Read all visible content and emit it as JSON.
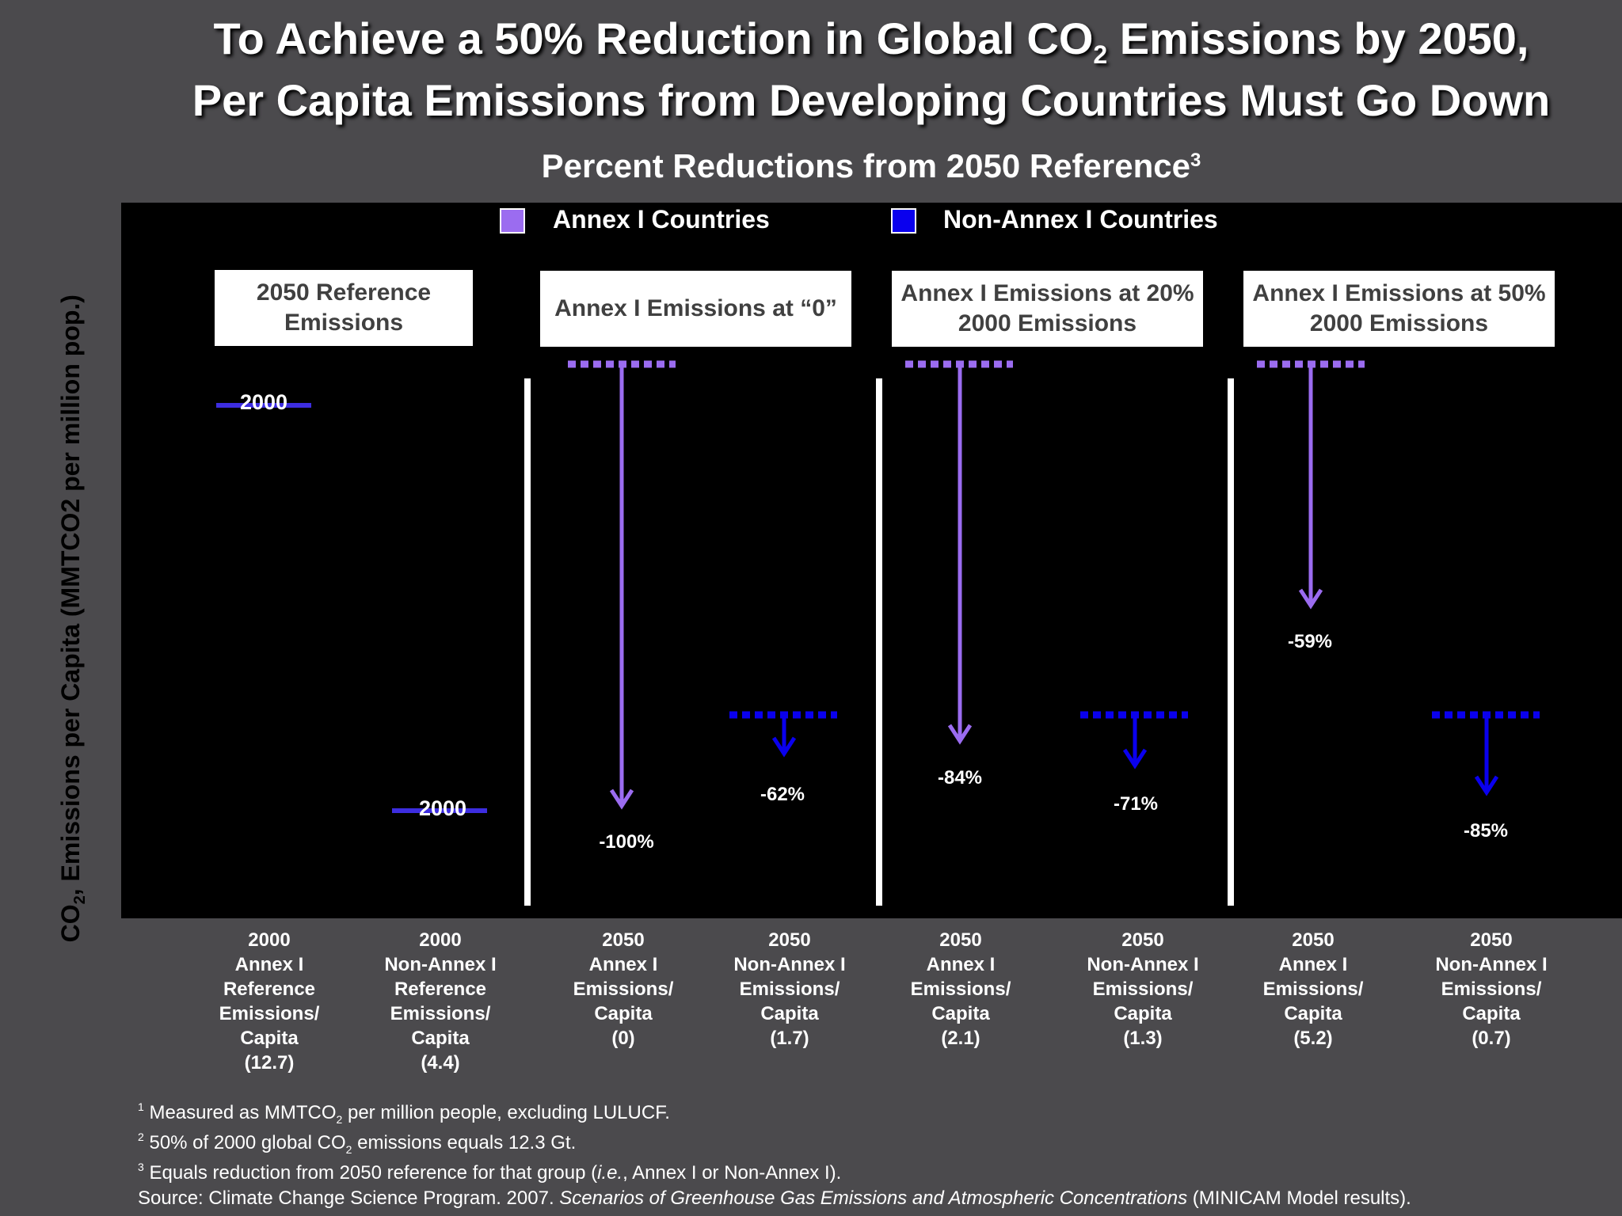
{
  "title": {
    "line1_pre": "To Achieve a 50% Reduction in Global CO",
    "line1_sub": "2",
    "line1_post": " Emissions by 2050,",
    "line2": "Per Capita Emissions from Developing Countries Must Go Down"
  },
  "colors": {
    "annex": "#9b6cf0",
    "non_annex": "#0a00ee",
    "reference_line": "#3d2de0",
    "plot_bg": "#000000",
    "page_bg": "#4b4a4d"
  },
  "chart_data": {
    "type": "bar",
    "title": "Percent Reductions from 2050 Reference",
    "title_sup": "3",
    "ylabel_pre": "CO",
    "ylabel_sub": "2",
    "ylabel_post": ", Emissions per Capita (MMTCO2 per million pop.)",
    "legend": {
      "placement": "top-center",
      "entries": [
        {
          "name": "Annex I Countries",
          "color": "#9b6cf0"
        },
        {
          "name": "Non-Annex I Countries",
          "color": "#0a00ee"
        }
      ]
    },
    "panels": [
      {
        "label": "2050 Reference Emissions"
      },
      {
        "label": "Annex I Emissions at “0”"
      },
      {
        "label": "Annex I Emissions at 20% 2000 Emissions"
      },
      {
        "label": "Annex I Emissions at 50% 2000 Emissions"
      }
    ],
    "reference_marks": [
      {
        "group": "Annex I",
        "label": "2000",
        "value": 12.7
      },
      {
        "group": "Non-Annex I",
        "label": "2000",
        "value": 4.4
      }
    ],
    "categories": [
      {
        "lines": [
          "2000",
          "Annex I",
          "Reference",
          "Emissions/",
          "Capita",
          "(12.7)"
        ],
        "group": "Annex I",
        "value": 12.7
      },
      {
        "lines": [
          "2000",
          "Non-Annex I",
          "Reference",
          "Emissions/",
          "Capita",
          "(4.4)"
        ],
        "group": "Non-Annex I",
        "value": 4.4
      },
      {
        "lines": [
          "2050",
          "Annex I",
          "Emissions/",
          "Capita",
          "(0)"
        ],
        "group": "Annex I",
        "value": 0,
        "reduction": "-100%"
      },
      {
        "lines": [
          "2050",
          "Non-Annex I",
          "Emissions/",
          "Capita",
          "(1.7)"
        ],
        "group": "Non-Annex I",
        "value": 1.7,
        "reduction": "-62%"
      },
      {
        "lines": [
          "2050",
          "Annex I",
          "Emissions/",
          "Capita",
          "(2.1)"
        ],
        "group": "Annex I",
        "value": 2.1,
        "reduction": "-84%"
      },
      {
        "lines": [
          "2050",
          "Non-Annex I",
          "Emissions/",
          "Capita",
          "(1.3)"
        ],
        "group": "Non-Annex I",
        "value": 1.3,
        "reduction": "-71%"
      },
      {
        "lines": [
          "2050",
          "Annex I",
          "Emissions/",
          "Capita",
          "(5.2)"
        ],
        "group": "Annex I",
        "value": 5.2,
        "reduction": "-59%"
      },
      {
        "lines": [
          "2050",
          "Non-Annex I",
          "Emissions/",
          "Capita",
          "(0.7)"
        ],
        "group": "Non-Annex I",
        "value": 0.7,
        "reduction": "-85%"
      }
    ]
  },
  "footnotes": {
    "f1_num": "1",
    "f1_pre": " Measured as MMTCO",
    "f1_sub": "2",
    "f1_post": " per million people, excluding LULUCF.",
    "f2_num": "2",
    "f2_pre": " 50% of 2000 global CO",
    "f2_sub": "2",
    "f2_post": " emissions equals 12.3 Gt.",
    "f3_num": "3",
    "f3_pre": " Equals reduction from 2050 reference for that group (",
    "f3_italic": "i.e.",
    "f3_post": ", Annex I or Non-Annex I).",
    "source_pre": "Source: Climate Change Science Program. 2007. ",
    "source_italic": "Scenarios of Greenhouse Gas Emissions and Atmospheric Concentrations",
    "source_post": " (MINICAM Model results)."
  }
}
